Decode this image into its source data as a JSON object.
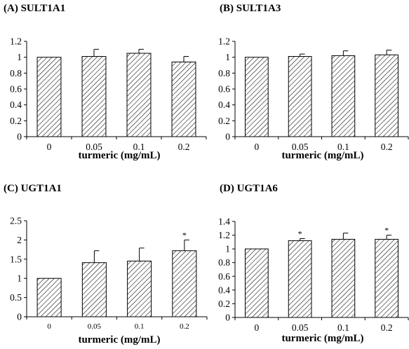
{
  "chart_data": [
    {
      "type": "bar",
      "title": "(A) SULT1A1",
      "xlabel": "turmeric (mg/mL)",
      "ylabel": "",
      "categories": [
        "0",
        "0.05",
        "0.1",
        "0.2"
      ],
      "values": [
        1.0,
        1.01,
        1.05,
        0.94
      ],
      "errors": [
        0,
        0.09,
        0.05,
        0.07
      ],
      "significance": [
        "",
        "",
        "",
        ""
      ],
      "ylim": [
        0,
        1.2
      ],
      "yticks": [
        "0",
        "0.2",
        "0.4",
        "0.6",
        "0.8",
        "1",
        "1.2"
      ],
      "bar_fill": "diagonal-hatch"
    },
    {
      "type": "bar",
      "title": "(B) SULT1A3",
      "xlabel": "turmeric (mg/mL)",
      "ylabel": "",
      "categories": [
        "0",
        "0.05",
        "0.1",
        "0.2"
      ],
      "values": [
        1.0,
        1.01,
        1.02,
        1.03
      ],
      "errors": [
        0,
        0.03,
        0.06,
        0.06
      ],
      "significance": [
        "",
        "",
        "",
        ""
      ],
      "ylim": [
        0,
        1.2
      ],
      "yticks": [
        "0",
        "0.2",
        "0.4",
        "0.6",
        "0.8",
        "1",
        "1.2"
      ],
      "bar_fill": "diagonal-hatch"
    },
    {
      "type": "bar",
      "title": "(C) UGT1A1",
      "xlabel": "turmeric (mg/mL)",
      "ylabel": "",
      "categories": [
        "0",
        "0.05",
        "0.1",
        "0.2"
      ],
      "values": [
        1.0,
        1.41,
        1.45,
        1.72
      ],
      "errors": [
        0,
        0.31,
        0.34,
        0.28
      ],
      "significance": [
        "",
        "",
        "",
        "*"
      ],
      "ylim": [
        0,
        2.5
      ],
      "yticks": [
        "0",
        "0.5",
        "1",
        "1.5",
        "2",
        "2.5"
      ],
      "bar_fill": "diagonal-hatch"
    },
    {
      "type": "bar",
      "title": "(D) UGT1A6",
      "xlabel": "turmeric (mg/mL)",
      "ylabel": "",
      "categories": [
        "0",
        "0.05",
        "0.1",
        "0.2"
      ],
      "values": [
        1.0,
        1.12,
        1.14,
        1.14
      ],
      "errors": [
        0,
        0.03,
        0.09,
        0.06
      ],
      "significance": [
        "",
        "*",
        "",
        "*"
      ],
      "ylim": [
        0,
        1.4
      ],
      "yticks": [
        "0",
        "0.2",
        "0.4",
        "0.6",
        "0.8",
        "1",
        "1.2",
        "1.4"
      ],
      "bar_fill": "diagonal-hatch"
    }
  ]
}
